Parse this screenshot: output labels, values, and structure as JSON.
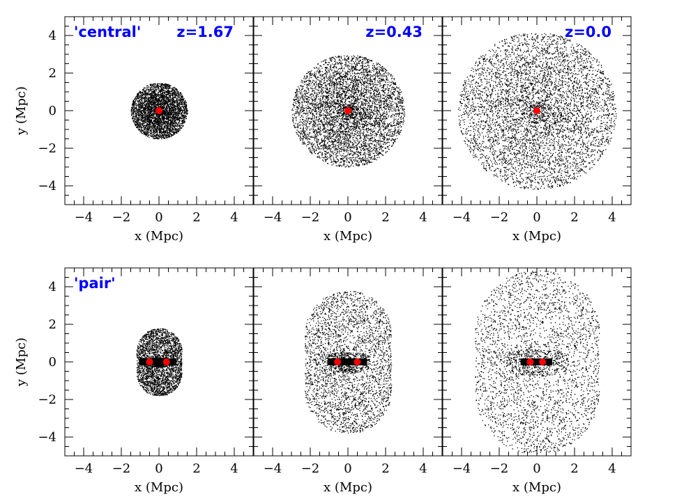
{
  "chart_data": {
    "type": "scatter",
    "layout": "2x3 grid",
    "xlim": [
      -5,
      5
    ],
    "ylim": [
      -5,
      5
    ],
    "xticks": [
      "−4",
      "−2",
      "0",
      "2",
      "4"
    ],
    "yticks": [
      "−4",
      "−2",
      "0",
      "2",
      "4"
    ],
    "xlabel": "x (Mpc)",
    "ylabel": "y (Mpc)",
    "label_color": "#0000ff",
    "particle_color": "#000000",
    "core_color": "#ff0000",
    "rows": [
      {
        "label": "'central'",
        "panels": [
          {
            "redshift_label": "z=1.67",
            "distribution": "disk",
            "radius_mpc": 1.5,
            "cores": [
              [
                0,
                0
              ]
            ]
          },
          {
            "redshift_label": "z=0.43",
            "distribution": "disk",
            "radius_mpc": 3.0,
            "cores": [
              [
                0,
                0
              ]
            ]
          },
          {
            "redshift_label": "z=0.0",
            "distribution": "disk",
            "radius_mpc": 4.2,
            "cores": [
              [
                0,
                0
              ]
            ]
          }
        ]
      },
      {
        "label": "'pair'",
        "panels": [
          {
            "redshift_label": "",
            "distribution": "capsule",
            "half_width_mpc": 1.2,
            "half_height_mpc": 1.8,
            "cores": [
              [
                -0.5,
                0
              ],
              [
                0.4,
                0
              ]
            ]
          },
          {
            "redshift_label": "",
            "distribution": "capsule",
            "half_width_mpc": 2.3,
            "half_height_mpc": 3.8,
            "cores": [
              [
                -0.55,
                0
              ],
              [
                0.5,
                0
              ]
            ]
          },
          {
            "redshift_label": "",
            "distribution": "capsule",
            "half_width_mpc": 3.3,
            "half_height_mpc": 4.9,
            "cores": [
              [
                -0.35,
                0
              ],
              [
                0.3,
                0
              ]
            ]
          }
        ]
      }
    ]
  }
}
